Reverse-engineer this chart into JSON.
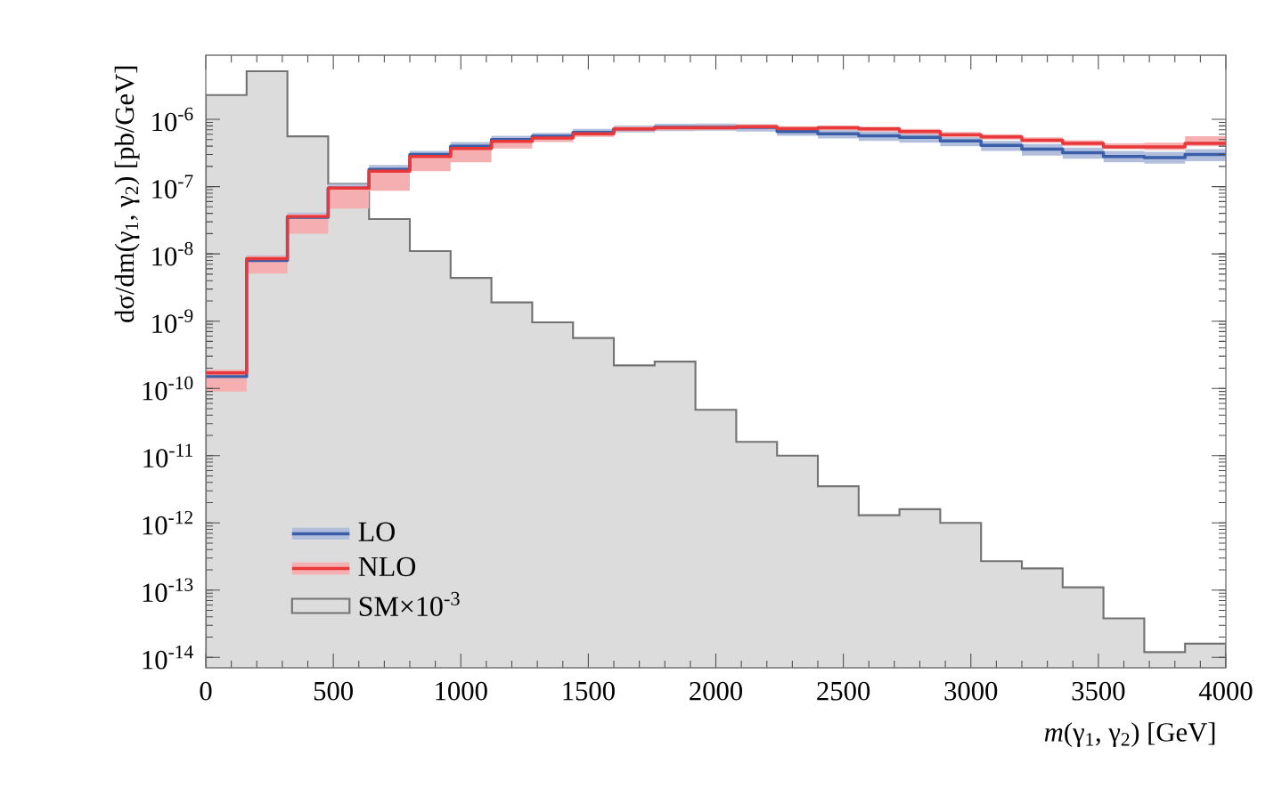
{
  "chart_data": {
    "type": "histogram",
    "xlabel": "*m*(γ$_{1}$, γ$_{2}$) [GeV]",
    "ylabel": "dσ/dm(γ$_{1}$, γ$_{2}$) [pb/GeV]",
    "bins": [
      0,
      160,
      320,
      480,
      640,
      800,
      960,
      1120,
      1280,
      1440,
      1600,
      1760,
      1920,
      2080,
      2240,
      2400,
      2560,
      2720,
      2880,
      3040,
      3200,
      3360,
      3520,
      3680,
      3840,
      4000
    ],
    "series": [
      {
        "name": "LO",
        "type": "step",
        "color": "#3b5ea8",
        "x": [
          0,
          160,
          320,
          480,
          640,
          800,
          960,
          1120,
          1280,
          1440,
          1600,
          1760,
          1920,
          2080,
          2240,
          2400,
          2560,
          2720,
          2880,
          3040,
          3200,
          3360,
          3520,
          3680,
          3840,
          4000
        ],
        "values": [
          1.5e-10,
          8e-09,
          3.5e-08,
          9.5e-08,
          1.8e-07,
          3e-07,
          4e-07,
          5e-07,
          5.6e-07,
          6.4e-07,
          7.2e-07,
          7.6e-07,
          7.6e-07,
          7.6e-07,
          6.6e-07,
          6.1e-07,
          5.7e-07,
          5.4e-07,
          4.8e-07,
          4.1e-07,
          3.6e-07,
          3.2e-07,
          2.8e-07,
          2.7e-07,
          3e-07,
          3e-07
        ],
        "lower": [
          1.2e-10,
          6.5e-09,
          2.9e-08,
          8e-08,
          1.5e-07,
          2.6e-07,
          3.5e-07,
          4.4e-07,
          5e-07,
          5.7e-07,
          6.4e-07,
          6.7e-07,
          6.8e-07,
          6.6e-07,
          5.7e-07,
          5.2e-07,
          4.8e-07,
          4.5e-07,
          4e-07,
          3.4e-07,
          2.9e-07,
          2.6e-07,
          2.3e-07,
          2.2e-07,
          2.4e-07,
          2.4e-07
        ],
        "upper": [
          1.9e-10,
          9.5e-09,
          4.1e-08,
          1.1e-07,
          2.1e-07,
          3.4e-07,
          4.6e-07,
          5.7e-07,
          6.3e-07,
          7.2e-07,
          8.1e-07,
          8.6e-07,
          8.7e-07,
          8.5e-07,
          7.6e-07,
          7e-07,
          6.6e-07,
          6.3e-07,
          5.6e-07,
          4.8e-07,
          4.3e-07,
          3.8e-07,
          3.4e-07,
          3.3e-07,
          3.6e-07,
          3.6e-07
        ]
      },
      {
        "name": "NLO",
        "type": "step",
        "color": "#e8383a",
        "x": [
          0,
          160,
          320,
          480,
          640,
          800,
          960,
          1120,
          1280,
          1440,
          1600,
          1760,
          1920,
          2080,
          2240,
          2400,
          2560,
          2720,
          2880,
          3040,
          3200,
          3360,
          3520,
          3680,
          3840,
          4000
        ],
        "values": [
          1.7e-10,
          8.5e-09,
          3.6e-08,
          9.5e-08,
          1.7e-07,
          2.8e-07,
          3.7e-07,
          4.7e-07,
          5.3e-07,
          6.1e-07,
          7.2e-07,
          7.5e-07,
          7.5e-07,
          7.8e-07,
          7.3e-07,
          7.5e-07,
          7.2e-07,
          6.6e-07,
          5.9e-07,
          5.5e-07,
          4.9e-07,
          4.4e-07,
          3.9e-07,
          3.9e-07,
          4.4e-07,
          4.4e-07
        ],
        "lower": [
          9e-11,
          5.1e-09,
          2e-08,
          4.7e-08,
          8.7e-08,
          1.7e-07,
          2.3e-07,
          3.7e-07,
          4.6e-07,
          5.5e-07,
          6.6e-07,
          6.9e-07,
          7e-07,
          7.1e-07,
          6.7e-07,
          6.9e-07,
          6.6e-07,
          6e-07,
          5.4e-07,
          5e-07,
          4.5e-07,
          4e-07,
          3.6e-07,
          3.5e-07,
          4e-07,
          4e-07
        ],
        "upper": [
          1.9e-10,
          9.3e-09,
          3.9e-08,
          1.03e-07,
          1.85e-07,
          3e-07,
          4e-07,
          5.1e-07,
          5.8e-07,
          6.6e-07,
          7.8e-07,
          8.1e-07,
          8.2e-07,
          8.4e-07,
          7.9e-07,
          8.1e-07,
          7.8e-07,
          7.2e-07,
          6.5e-07,
          6e-07,
          5.4e-07,
          4.9e-07,
          4.4e-07,
          4.5e-07,
          5.6e-07,
          5.6e-07
        ]
      },
      {
        "name": "SM×10$^{-3}$",
        "color": "#737373",
        "values": [
          2.3e-06,
          5.2e-06,
          5.6e-07,
          1.1e-07,
          3.3e-08,
          1.1e-08,
          4.4e-09,
          1.9e-09,
          9.6e-10,
          5.6e-10,
          2.2e-10,
          2.5e-10,
          4.8e-11,
          1.6e-11,
          1e-11,
          3.5e-12,
          1.3e-12,
          1.6e-12,
          1e-12,
          2.7e-13,
          2.1e-13,
          1.1e-13,
          3.8e-14,
          1.2e-14,
          1.6e-14
        ]
      }
    ],
    "xlim": [
      0,
      4000
    ],
    "ylim": [
      7e-15,
      9e-06
    ],
    "log": "y",
    "xticks": [
      0,
      500,
      1000,
      1500,
      2000,
      2500,
      3000,
      3500,
      4000
    ],
    "yticks": [
      {
        "value": 1e-14,
        "label": "10$^{-14}$"
      },
      {
        "value": 1e-13,
        "label": "10$^{-13}$"
      },
      {
        "value": 1e-12,
        "label": "10$^{-12}$"
      },
      {
        "value": 1e-11,
        "label": "10$^{-11}$"
      },
      {
        "value": 1e-10,
        "label": "10$^{-10}$"
      },
      {
        "value": 1e-09,
        "label": "10$^{-9}$"
      },
      {
        "value": 1e-08,
        "label": "10$^{-8}$"
      },
      {
        "value": 1e-07,
        "label": "10$^{-7}$"
      },
      {
        "value": 1e-06,
        "label": "10$^{-6}$"
      }
    ],
    "legend": "bottom left"
  }
}
